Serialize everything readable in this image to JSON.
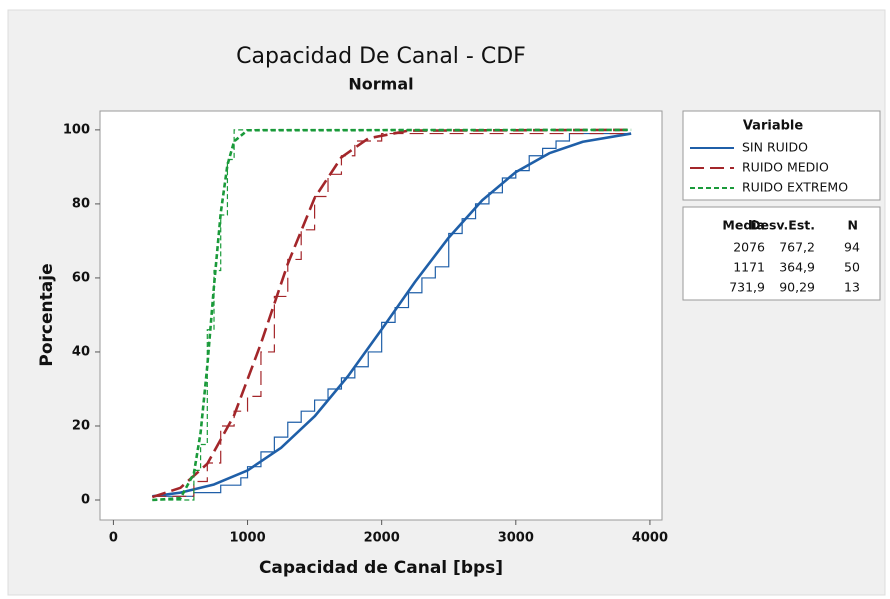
{
  "chart_data": {
    "type": "cdf",
    "title": "Capacidad De Canal - CDF",
    "subtitle": "Normal",
    "x_label": "Capacidad de Canal [bps]",
    "y_label": "Porcentaje",
    "xlim": [
      -100,
      4090
    ],
    "ylim": [
      -5.4,
      105.1
    ],
    "xticks": [
      0,
      1000,
      2000,
      3000,
      4000
    ],
    "yticks": [
      0,
      20,
      40,
      60,
      80,
      100
    ],
    "legend_title": "Variable",
    "series": [
      {
        "name": "SIN RUIDO",
        "color": "#1f5fa8",
        "dash": "none",
        "fit_x": [
          290,
          500,
          750,
          1000,
          1250,
          1500,
          1750,
          2000,
          2250,
          2500,
          2750,
          3000,
          3250,
          3500,
          3860
        ],
        "fit_values": [
          1.0,
          2.0,
          4.2,
          8.0,
          14.1,
          22.6,
          33.5,
          46.1,
          59.0,
          70.9,
          81.0,
          88.6,
          93.7,
          96.8,
          99.0
        ],
        "x": [
          290,
          600,
          800,
          950,
          1000,
          1100,
          1200,
          1300,
          1400,
          1500,
          1600,
          1700,
          1800,
          1900,
          2000,
          2100,
          2200,
          2300,
          2400,
          2500,
          2600,
          2700,
          2800,
          2900,
          3000,
          3100,
          3200,
          3300,
          3400,
          3850
        ],
        "values": [
          1,
          2,
          4,
          6,
          9,
          13,
          17,
          21,
          24,
          27,
          30,
          33,
          36,
          40,
          48,
          52,
          56,
          60,
          63,
          72,
          76,
          80,
          83,
          87,
          89,
          93,
          95,
          97,
          99,
          99
        ]
      },
      {
        "name": "RUIDO MEDIO",
        "color": "#a3262a",
        "dash": "14 6",
        "fit_x": [
          290,
          500,
          700,
          900,
          1100,
          1300,
          1500,
          1700,
          1900,
          2200,
          3860
        ],
        "fit_values": [
          0.8,
          3.3,
          9.8,
          22.9,
          42.3,
          63.8,
          81.6,
          92.6,
          97.7,
          99.8,
          100
        ],
        "x": [
          290,
          600,
          700,
          800,
          900,
          1000,
          1100,
          1200,
          1300,
          1400,
          1500,
          1600,
          1700,
          1800,
          2000,
          3850
        ],
        "values": [
          1,
          5,
          10,
          20,
          24,
          28,
          40,
          55,
          65,
          73,
          82,
          88,
          93,
          97,
          99,
          99
        ]
      },
      {
        "name": "RUIDO EXTREMO",
        "color": "#1a9a3a",
        "dash": "5 3",
        "fit_x": [
          290,
          500,
          600,
          650,
          700,
          750,
          800,
          850,
          900,
          1000,
          3860
        ],
        "fit_values": [
          0,
          0.5,
          7.2,
          18.2,
          36.2,
          57.9,
          77.5,
          90.5,
          96.9,
          99.9,
          100
        ],
        "x": [
          290,
          600,
          650,
          700,
          750,
          800,
          850,
          900,
          3850
        ],
        "values": [
          0,
          8,
          15,
          46,
          62,
          77,
          92,
          100,
          100
        ]
      }
    ],
    "summary": {
      "columns": [
        "Media",
        "Desv.Est.",
        "N"
      ],
      "rows": [
        [
          "2076",
          "767,2",
          "94"
        ],
        [
          "1171",
          "364,9",
          "50"
        ],
        [
          "731,9",
          "90,29",
          "13"
        ]
      ]
    }
  }
}
